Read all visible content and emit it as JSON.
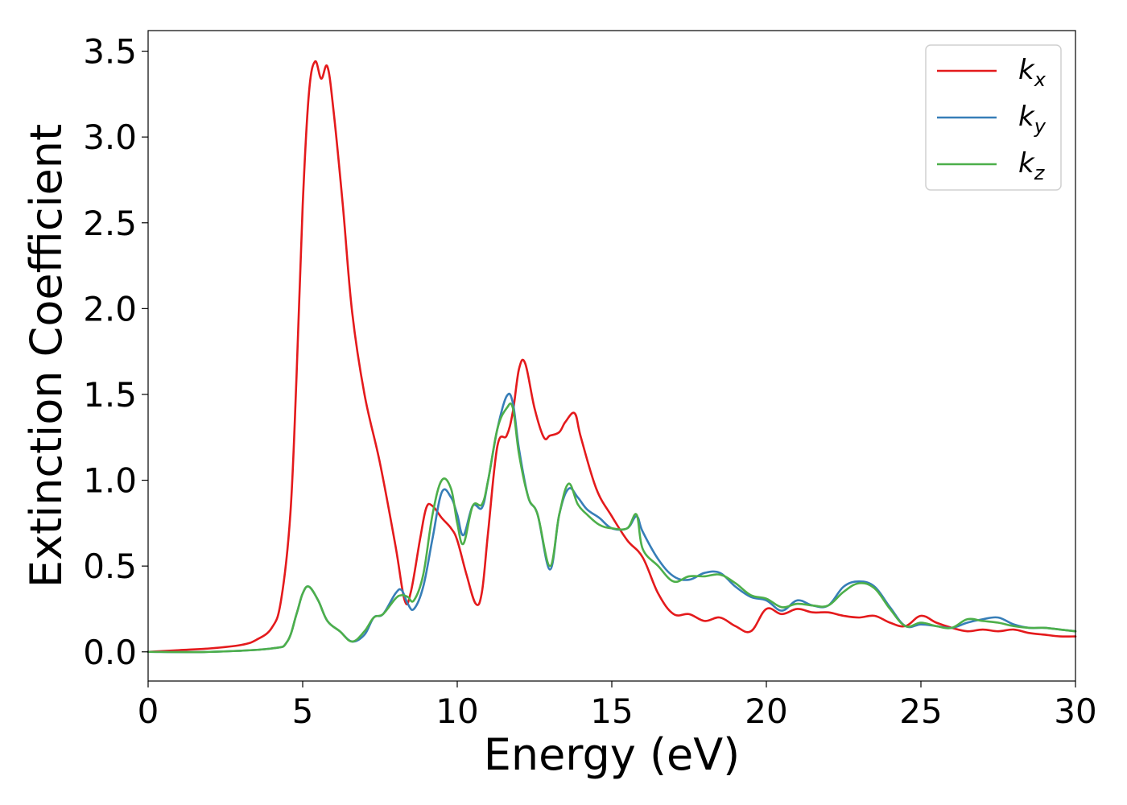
{
  "chart_data": {
    "type": "line",
    "xlabel": "Energy (eV)",
    "ylabel": "Extinction Coefficient",
    "xlim": [
      0,
      30
    ],
    "ylim": [
      -0.17,
      3.62
    ],
    "xticks": [
      0,
      5,
      10,
      15,
      20,
      25,
      30
    ],
    "yticks": [
      0.0,
      0.5,
      1.0,
      1.5,
      2.0,
      2.5,
      3.0,
      3.5
    ],
    "xtick_labels": [
      "0",
      "5",
      "10",
      "15",
      "20",
      "25",
      "30"
    ],
    "ytick_labels": [
      "0.0",
      "0.5",
      "1.0",
      "1.5",
      "2.0",
      "2.5",
      "3.0",
      "3.5"
    ],
    "grid": false,
    "legend_position": "top-right",
    "series": [
      {
        "name": "k_x",
        "label_main": "k",
        "label_sub": "x",
        "color": "#e41a1c",
        "x": [
          0,
          1,
          2,
          3,
          3.5,
          4,
          4.3,
          4.6,
          4.8,
          5,
          5.2,
          5.4,
          5.6,
          5.8,
          6,
          6.3,
          6.6,
          7,
          7.5,
          8,
          8.3,
          8.5,
          8.8,
          9,
          9.2,
          9.5,
          9.8,
          10,
          10.3,
          10.6,
          10.8,
          11,
          11.3,
          11.6,
          11.8,
          12,
          12.2,
          12.5,
          12.8,
          13,
          13.3,
          13.5,
          13.8,
          14,
          14.5,
          15,
          15.5,
          16,
          16.5,
          17,
          17.5,
          18,
          18.5,
          19,
          19.5,
          20,
          20.5,
          21,
          21.5,
          22,
          22.5,
          23,
          23.5,
          24,
          24.5,
          25,
          25.5,
          26,
          26.5,
          27,
          27.5,
          28,
          28.5,
          29,
          29.5,
          30
        ],
        "y": [
          0,
          0.01,
          0.02,
          0.04,
          0.07,
          0.14,
          0.3,
          0.8,
          1.6,
          2.6,
          3.25,
          3.44,
          3.34,
          3.41,
          3.15,
          2.6,
          1.98,
          1.5,
          1.1,
          0.62,
          0.3,
          0.35,
          0.66,
          0.84,
          0.85,
          0.78,
          0.72,
          0.65,
          0.45,
          0.28,
          0.35,
          0.7,
          1.2,
          1.26,
          1.4,
          1.65,
          1.68,
          1.42,
          1.25,
          1.26,
          1.28,
          1.34,
          1.39,
          1.25,
          0.95,
          0.79,
          0.65,
          0.55,
          0.34,
          0.22,
          0.22,
          0.18,
          0.2,
          0.15,
          0.12,
          0.25,
          0.22,
          0.25,
          0.23,
          0.23,
          0.21,
          0.2,
          0.21,
          0.17,
          0.15,
          0.21,
          0.17,
          0.14,
          0.12,
          0.13,
          0.12,
          0.13,
          0.11,
          0.1,
          0.09,
          0.09
        ]
      },
      {
        "name": "k_y",
        "label_main": "k",
        "label_sub": "y",
        "color": "#377eb8",
        "x": [
          0,
          2,
          4,
          4.5,
          4.8,
          5,
          5.2,
          5.5,
          5.8,
          6.2,
          6.6,
          7,
          7.3,
          7.6,
          8,
          8.2,
          8.4,
          8.6,
          8.9,
          9.2,
          9.5,
          9.8,
          10,
          10.2,
          10.5,
          10.8,
          11,
          11.3,
          11.6,
          11.8,
          12,
          12.3,
          12.6,
          13,
          13.3,
          13.6,
          13.9,
          14.2,
          14.6,
          15,
          15.5,
          15.8,
          16,
          16.5,
          17,
          17.5,
          18,
          18.5,
          19,
          19.5,
          20,
          20.5,
          21,
          21.5,
          22,
          22.5,
          23,
          23.5,
          24,
          24.5,
          25,
          25.5,
          26,
          26.5,
          27,
          27.5,
          28,
          28.5,
          29,
          29.5,
          30
        ],
        "y": [
          0,
          0,
          0.02,
          0.06,
          0.22,
          0.34,
          0.38,
          0.3,
          0.18,
          0.12,
          0.06,
          0.1,
          0.2,
          0.22,
          0.34,
          0.36,
          0.28,
          0.25,
          0.38,
          0.66,
          0.93,
          0.9,
          0.8,
          0.68,
          0.85,
          0.84,
          1.0,
          1.3,
          1.49,
          1.45,
          1.18,
          0.9,
          0.8,
          0.48,
          0.8,
          0.95,
          0.9,
          0.83,
          0.78,
          0.72,
          0.72,
          0.79,
          0.7,
          0.54,
          0.44,
          0.42,
          0.46,
          0.46,
          0.38,
          0.32,
          0.3,
          0.24,
          0.3,
          0.27,
          0.27,
          0.38,
          0.41,
          0.38,
          0.26,
          0.15,
          0.16,
          0.15,
          0.14,
          0.17,
          0.19,
          0.2,
          0.16,
          0.14,
          0.14,
          0.13,
          0.12
        ]
      },
      {
        "name": "k_z",
        "label_main": "k",
        "label_sub": "z",
        "color": "#4daf4a",
        "x": [
          0,
          2,
          4,
          4.5,
          4.8,
          5,
          5.2,
          5.5,
          5.8,
          6.2,
          6.6,
          7,
          7.3,
          7.6,
          8,
          8.2,
          8.4,
          8.6,
          8.9,
          9.2,
          9.5,
          9.8,
          10,
          10.2,
          10.5,
          10.8,
          11,
          11.3,
          11.6,
          11.8,
          12,
          12.3,
          12.6,
          13,
          13.3,
          13.6,
          13.9,
          14.2,
          14.6,
          15,
          15.5,
          15.8,
          16,
          16.5,
          17,
          17.5,
          18,
          18.5,
          19,
          19.5,
          20,
          20.5,
          21,
          21.5,
          22,
          22.5,
          23,
          23.5,
          24,
          24.5,
          25,
          25.5,
          26,
          26.5,
          27,
          27.5,
          28,
          28.5,
          29,
          29.5,
          30
        ],
        "y": [
          0,
          0,
          0.02,
          0.06,
          0.22,
          0.34,
          0.38,
          0.3,
          0.18,
          0.12,
          0.06,
          0.12,
          0.2,
          0.22,
          0.31,
          0.33,
          0.32,
          0.3,
          0.45,
          0.8,
          1.0,
          0.95,
          0.75,
          0.63,
          0.85,
          0.86,
          1.0,
          1.3,
          1.42,
          1.42,
          1.15,
          0.9,
          0.8,
          0.5,
          0.8,
          0.98,
          0.86,
          0.8,
          0.74,
          0.72,
          0.72,
          0.8,
          0.6,
          0.5,
          0.41,
          0.44,
          0.44,
          0.45,
          0.4,
          0.33,
          0.31,
          0.26,
          0.28,
          0.27,
          0.27,
          0.35,
          0.4,
          0.37,
          0.25,
          0.15,
          0.17,
          0.15,
          0.14,
          0.19,
          0.18,
          0.17,
          0.15,
          0.14,
          0.14,
          0.13,
          0.12
        ]
      }
    ]
  }
}
